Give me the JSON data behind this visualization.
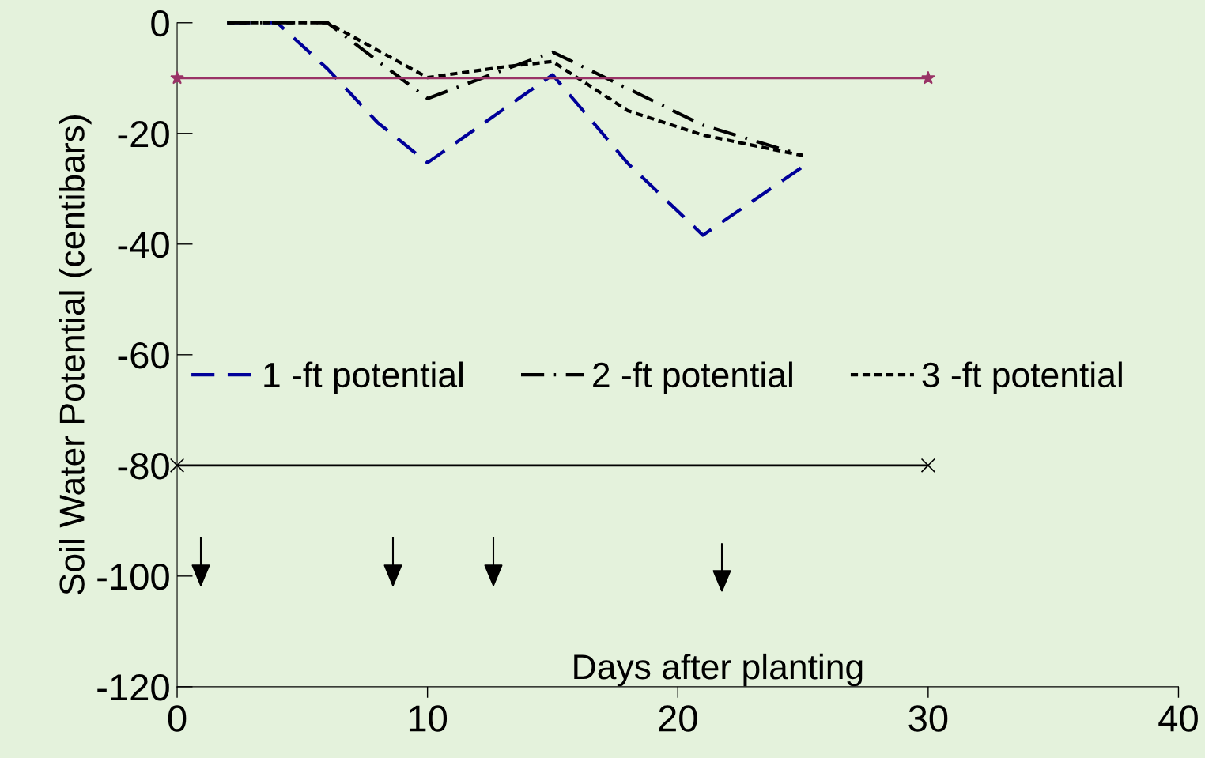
{
  "chart_data": {
    "type": "line",
    "ylabel": "Soil Water Potential (centibars)",
    "xlabel": "Days after planting",
    "xlim": [
      0,
      40
    ],
    "xticks": [
      0,
      10,
      20,
      30,
      40
    ],
    "ylim": [
      -120,
      0
    ],
    "yticks": [
      -120,
      -100,
      -80,
      -60,
      -40,
      -20,
      0
    ],
    "grid": false,
    "legend": "center",
    "series": [
      {
        "name": "1 -ft potential",
        "color": "#000099",
        "line_style": "dashed",
        "x": [
          2,
          4,
          6,
          8,
          10,
          15,
          18,
          21,
          25
        ],
        "values": [
          0,
          0,
          -8.3,
          -18,
          -25.3,
          -9.4,
          -25.4,
          -38.4,
          -26
        ]
      },
      {
        "name": "2 -ft potential",
        "color": "#000000",
        "line_style": "dashdot",
        "x": [
          2,
          4,
          6,
          10,
          13,
          15,
          21,
          25
        ],
        "values": [
          0,
          0,
          0,
          -13.7,
          -8.6,
          -5.3,
          -18.5,
          -24
        ]
      },
      {
        "name": "3 -ft potential",
        "color": "#000000",
        "line_style": "dotted",
        "x": [
          2,
          4,
          6,
          10,
          13,
          15,
          18,
          21,
          25
        ],
        "values": [
          0,
          0,
          0,
          -9.9,
          -8,
          -7,
          -15.9,
          -20.3,
          -24
        ]
      },
      {
        "color": "#993366",
        "line_style": "solid",
        "marker": "star",
        "x": [
          0,
          30
        ],
        "values": [
          -10,
          -10
        ]
      },
      {
        "color": "#000000",
        "line_style": "solid",
        "marker": "cross",
        "x": [
          0,
          30
        ],
        "values": [
          -80,
          -80
        ]
      }
    ]
  }
}
